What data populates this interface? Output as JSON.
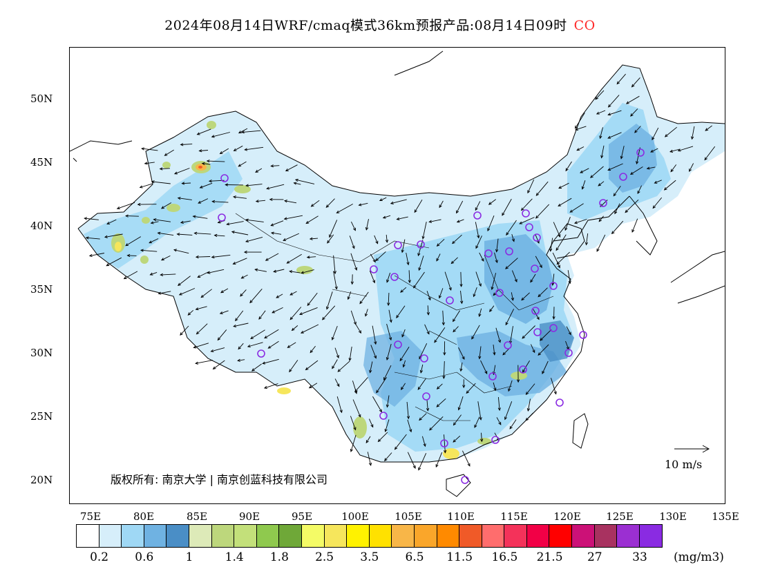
{
  "title": {
    "text": "2024年08月14日WRF/cmaq模式36km预报产品:08月14日09时",
    "species": "CO",
    "species_color": "#ff2a2a"
  },
  "axes": {
    "lat_labels": [
      "50N",
      "45N",
      "40N",
      "35N",
      "30N",
      "25N",
      "20N"
    ],
    "lon_labels": [
      "75E",
      "80E",
      "85E",
      "90E",
      "95E",
      "100E",
      "105E",
      "110E",
      "115E",
      "120E",
      "125E",
      "130E",
      "135E"
    ]
  },
  "copyright": "版权所有: 南京大学 | 南京创蓝科技有限公司",
  "wind_reference": {
    "label": "10 m/s"
  },
  "colorbar": {
    "colors": [
      "#ffffff",
      "#d6eefa",
      "#9fd8f5",
      "#6fb2e2",
      "#4a8ec6",
      "#ddeab8",
      "#bdd77c",
      "#c3e07a",
      "#8fc94e",
      "#6fa838",
      "#f4fb66",
      "#f6e65c",
      "#fff200",
      "#ffe100",
      "#f8b648",
      "#faa62a",
      "#ff8a00",
      "#f05a28",
      "#ff6d6d",
      "#f4325a",
      "#f20046",
      "#ff0000",
      "#cc1177",
      "#a83260",
      "#9b2fd2",
      "#8a2be2"
    ],
    "tick_labels": [
      "0.2",
      "0.6",
      "1",
      "1.4",
      "1.8",
      "2.5",
      "3.5",
      "6.5",
      "11.5",
      "16.5",
      "21.5",
      "27",
      "33"
    ],
    "units": "(mg/m3)"
  },
  "stations": {
    "marker_color": "#8a2be2",
    "count": 36
  }
}
